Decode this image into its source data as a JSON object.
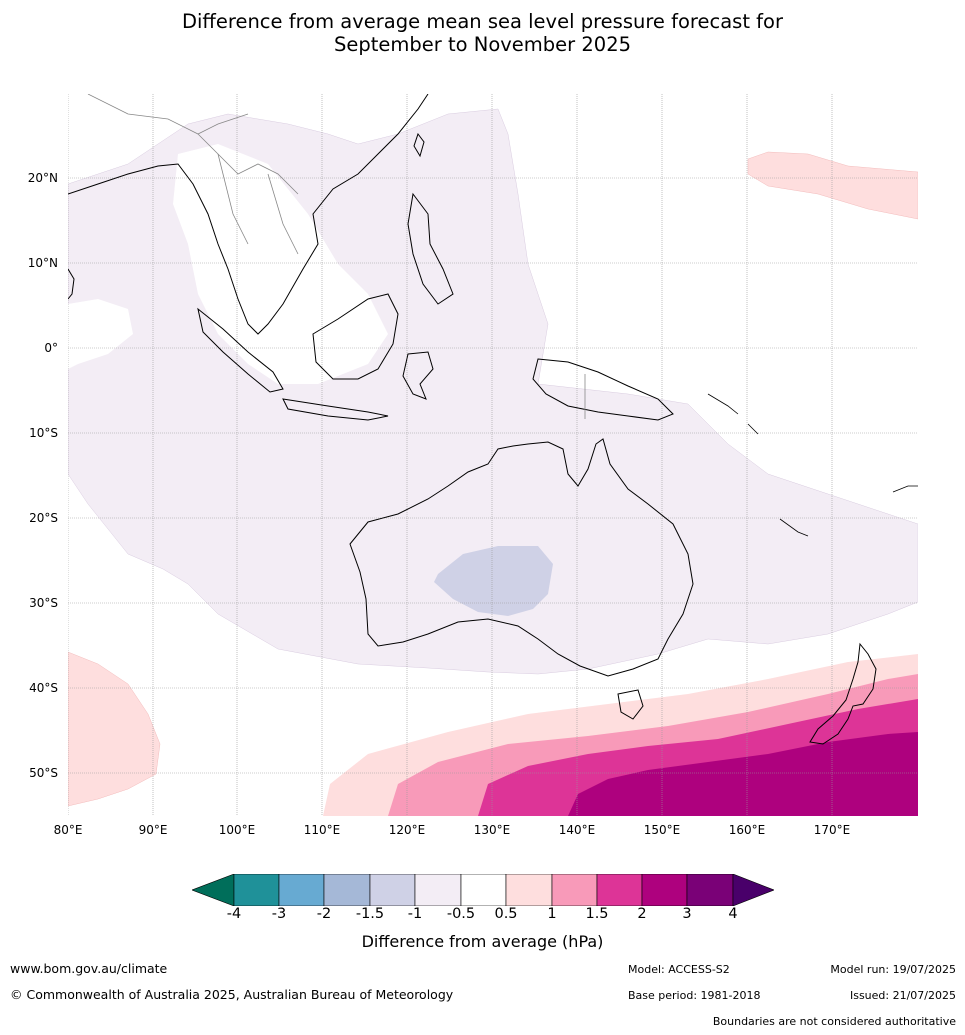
{
  "title_line1": "Difference from average mean sea level pressure forecast for",
  "title_line2": "September to November 2025",
  "lat_labels": [
    "20°N",
    "10°N",
    "0°",
    "10°S",
    "20°S",
    "30°S",
    "40°S",
    "50°S"
  ],
  "lon_labels": [
    "80°E",
    "90°E",
    "100°E",
    "110°E",
    "120°E",
    "130°E",
    "140°E",
    "150°E",
    "160°E",
    "170°E"
  ],
  "legend": {
    "title": "Difference from average (hPa)",
    "ticks": [
      "-4",
      "-3",
      "-2",
      "-1.5",
      "-1",
      "-0.5",
      "0.5",
      "1",
      "1.5",
      "2",
      "3",
      "4"
    ],
    "colors": {
      "lt_m4": "#006e5a",
      "m4_m3": "#1f9199",
      "m3_m2": "#67aad2",
      "m2_m15": "#a5b8d7",
      "m15_m1": "#cfd1e6",
      "m1_m05": "#f3edf5",
      "m05_05": "#ffffff",
      "p05_1": "#fedede",
      "p1_15": "#f89ab9",
      "p15_2": "#dd3497",
      "p2_3": "#ae017e",
      "p3_4": "#7a0177",
      "gt_4": "#49006a"
    }
  },
  "footer": {
    "website": "www.bom.gov.au/climate",
    "copyright": "© Commonwealth of Australia 2025, Australian Bureau of Meteorology",
    "model": "Model: ACCESS-S2",
    "base_period": "Base period: 1981-2018",
    "model_run": "Model run: 19/07/2025",
    "issued": "Issued: 21/07/2025",
    "disclaimer": "Boundaries are not considered authoritative"
  }
}
